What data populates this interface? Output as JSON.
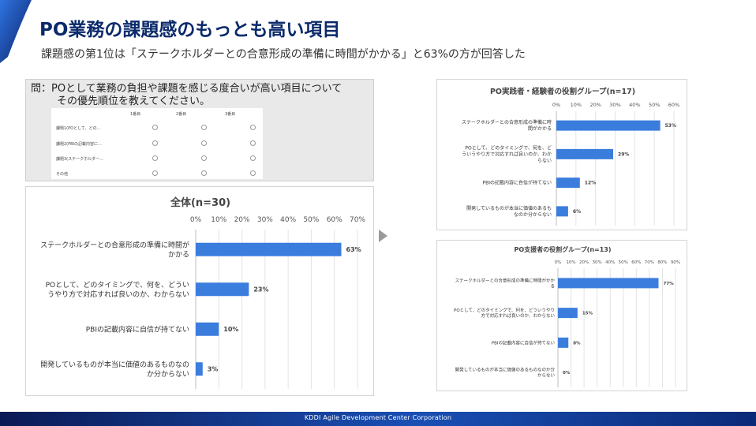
{
  "title": "PO業務の課題感のもっとも高い項目",
  "subtitle": "課題感の第1位は「ステークホルダーとの合意形成の準備に時間がかかる」と63%の方が回答した",
  "question": {
    "line1": "問：POとして業務の負担や課題を感じる度合いが高い項目について",
    "line2": "その優先順位を教えてください。",
    "form": {
      "columns": [
        "1番目",
        "2番目",
        "3番目"
      ],
      "rows": [
        "課題1(POとして、どの…",
        "課題2(PBIの記載内容に…",
        "課題3(ステークホルダー…",
        "その他"
      ]
    }
  },
  "footer": "KDDI Agile Development Center Corporation",
  "colors": {
    "bar": "#3b7ddd",
    "title": "#0b2a6b",
    "grid": "#e3e3e3",
    "corner": "#1a4fb4"
  },
  "chart_data": [
    {
      "type": "bar",
      "orientation": "horizontal",
      "title": "全体(n=30)",
      "categories": [
        [
          "ステークホルダーとの合意形成の準備に時間が",
          "かかる"
        ],
        [
          "POとして、どのタイミングで、何を、どうい",
          "うやり方で対応すれば良いのか、わからない"
        ],
        [
          "PBIの記載内容に自信が持てない"
        ],
        [
          "開発しているものが本当に価値のあるものなの",
          "か分からない"
        ]
      ],
      "values": [
        63,
        23,
        10,
        3
      ],
      "value_labels": [
        "63%",
        "23%",
        "10%",
        "3%"
      ],
      "xlim": [
        0,
        70
      ],
      "ticks": [
        "0%",
        "10%",
        "20%",
        "30%",
        "40%",
        "50%",
        "60%",
        "70%"
      ],
      "grid": true
    },
    {
      "type": "bar",
      "orientation": "horizontal",
      "title": "PO実践者・経験者の役割グループ(n=17)",
      "categories": [
        [
          "ステークホルダーとの合意形成の準備に時",
          "間がかかる"
        ],
        [
          "POとして、どのタイミングで、何を、ど",
          "ういうやり方で対応すれば良いのか、わか",
          "らない"
        ],
        [
          "PBIの記載内容に自信が持てない"
        ],
        [
          "開発しているものが本当に価値のあるも",
          "なのか分からない"
        ]
      ],
      "values": [
        53,
        29,
        12,
        6
      ],
      "value_labels": [
        "53%",
        "29%",
        "12%",
        "6%"
      ],
      "xlim": [
        0,
        60
      ],
      "ticks": [
        "0%",
        "10%",
        "20%",
        "30%",
        "40%",
        "50%",
        "60%"
      ],
      "grid": true
    },
    {
      "type": "bar",
      "orientation": "horizontal",
      "title": "PO支援者の役割グループ(n=13)",
      "categories": [
        [
          "ステークホルダーとの合意形成の準備に時間がかか",
          "る"
        ],
        [
          "POとして、どのタイミングで、何を、どういうやり",
          "方で対応すれば良いのか、わからない"
        ],
        [
          "PBIの記載内容に自信が持てない"
        ],
        [
          "開発しているものが本当に価値のあるものなのか分",
          "からない"
        ]
      ],
      "values": [
        77,
        15,
        8,
        0
      ],
      "value_labels": [
        "77%",
        "15%",
        "8%",
        "0%"
      ],
      "xlim": [
        0,
        90
      ],
      "ticks": [
        "0%",
        "10%",
        "20%",
        "30%",
        "40%",
        "50%",
        "60%",
        "70%",
        "80%",
        "90%"
      ],
      "grid": true
    }
  ]
}
